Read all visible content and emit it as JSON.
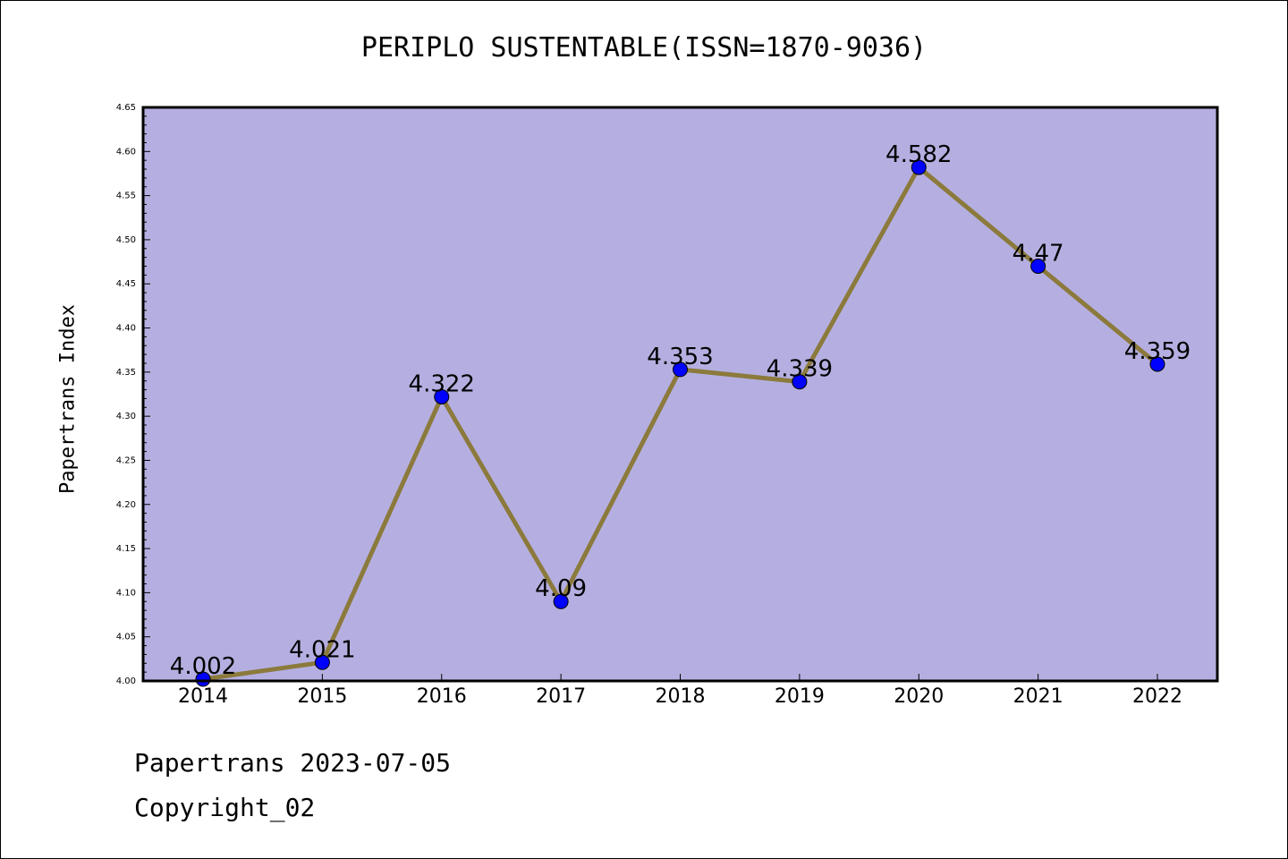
{
  "page": {
    "title": "PERIPLO SUSTENTABLE(ISSN=1870-9036)",
    "footer_line1": "Papertrans 2023-07-05",
    "footer_line2": "Copyright_02"
  },
  "colors": {
    "plot_background": "#b5afe1",
    "line": "#8b7a3c",
    "marker": "#0000ff",
    "axis": "#000000"
  },
  "chart_data": {
    "type": "line",
    "title": "PERIPLO SUSTENTABLE(ISSN=1870-9036)",
    "xlabel": "",
    "ylabel": "Papertrans Index",
    "categories": [
      "2014",
      "2015",
      "2016",
      "2017",
      "2018",
      "2019",
      "2020",
      "2021",
      "2022"
    ],
    "series": [
      {
        "values": [
          4.002,
          4.021,
          4.322,
          4.09,
          4.353,
          4.339,
          4.582,
          4.47,
          4.359
        ],
        "labels": [
          "4.002",
          "4.021",
          "4.322",
          "4.09",
          "4.353",
          "4.339",
          "4.582",
          "4.47",
          "4.359"
        ]
      }
    ],
    "ylim": [
      4.0,
      4.65
    ],
    "yticks": [
      "4.00",
      "4.05",
      "4.10",
      "4.15",
      "4.20",
      "4.25",
      "4.30",
      "4.35",
      "4.40",
      "4.45",
      "4.50",
      "4.55",
      "4.60",
      "4.65"
    ],
    "grid": false,
    "legend": "none"
  }
}
